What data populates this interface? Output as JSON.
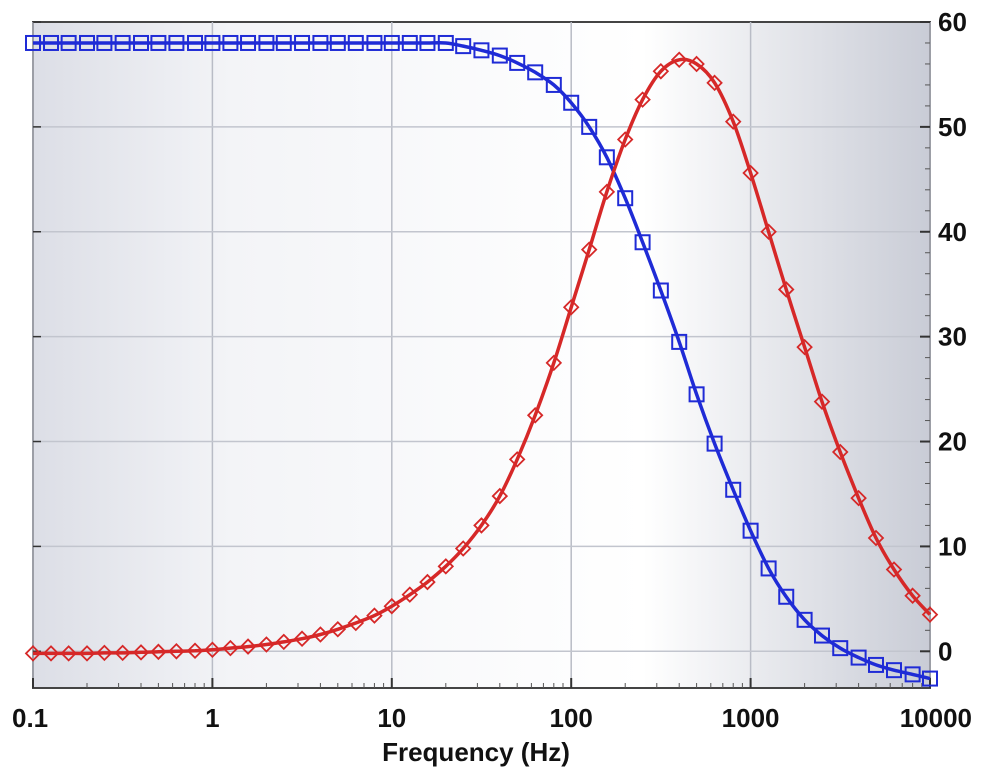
{
  "chart_data": {
    "type": "line",
    "xlabel": "Frequency (Hz)",
    "ylabel": "",
    "x_scale": "log",
    "xlim": [
      0.1,
      10000
    ],
    "ylim": [
      -3.5,
      60
    ],
    "grid": true,
    "x_tick_labels": [
      "0.1",
      "1",
      "10",
      "100",
      "1000",
      "10000"
    ],
    "y_tick_labels": [
      "0",
      "10",
      "20",
      "30",
      "40",
      "50",
      "60"
    ],
    "series": [
      {
        "marker": "square",
        "color": "#1f2bd6",
        "x": [
          0.1,
          0.126,
          0.158,
          0.2,
          0.25,
          0.316,
          0.4,
          0.5,
          0.63,
          0.8,
          1,
          1.26,
          1.58,
          2,
          2.5,
          3.16,
          4,
          5,
          6.3,
          8,
          10,
          12.6,
          15.8,
          20,
          25,
          31.6,
          40,
          50,
          63,
          80,
          100,
          126,
          158,
          200,
          250,
          316,
          400,
          500,
          630,
          800,
          1000,
          1260,
          1580,
          2000,
          2500,
          3160,
          4000,
          5000,
          6300,
          8000,
          10000
        ],
        "y": [
          58,
          58,
          58,
          58,
          58,
          58,
          58,
          58,
          58,
          58,
          58,
          58,
          58,
          58,
          58,
          58,
          58,
          58,
          58,
          58,
          58,
          58,
          58,
          58,
          57.7,
          57.3,
          56.8,
          56.1,
          55.2,
          54,
          52.3,
          50,
          47.1,
          43.2,
          39,
          34.4,
          29.5,
          24.5,
          19.8,
          15.4,
          11.5,
          7.9,
          5.2,
          3,
          1.5,
          0.3,
          -0.6,
          -1.3,
          -1.8,
          -2.2,
          -2.6
        ]
      },
      {
        "marker": "diamond",
        "color": "#d62828",
        "x": [
          0.1,
          0.126,
          0.158,
          0.2,
          0.25,
          0.316,
          0.4,
          0.5,
          0.63,
          0.8,
          1,
          1.26,
          1.58,
          2,
          2.5,
          3.16,
          4,
          5,
          6.3,
          8,
          10,
          12.6,
          15.8,
          20,
          25,
          31.6,
          40,
          50,
          63,
          80,
          100,
          126,
          158,
          200,
          250,
          316,
          400,
          500,
          630,
          800,
          1000,
          1260,
          1580,
          2000,
          2500,
          3160,
          4000,
          5000,
          6300,
          8000,
          10000
        ],
        "y": [
          -0.2,
          -0.2,
          -0.2,
          -0.2,
          -0.15,
          -0.15,
          -0.1,
          -0.05,
          0,
          0.05,
          0.15,
          0.3,
          0.45,
          0.65,
          0.9,
          1.2,
          1.6,
          2.1,
          2.7,
          3.4,
          4.3,
          5.4,
          6.6,
          8.1,
          9.8,
          12,
          14.8,
          18.3,
          22.5,
          27.5,
          32.8,
          38.3,
          43.8,
          48.8,
          52.6,
          55.3,
          56.4,
          56,
          54.2,
          50.5,
          45.6,
          40,
          34.5,
          29,
          23.8,
          19,
          14.6,
          10.8,
          7.8,
          5.3,
          3.5
        ]
      }
    ]
  }
}
